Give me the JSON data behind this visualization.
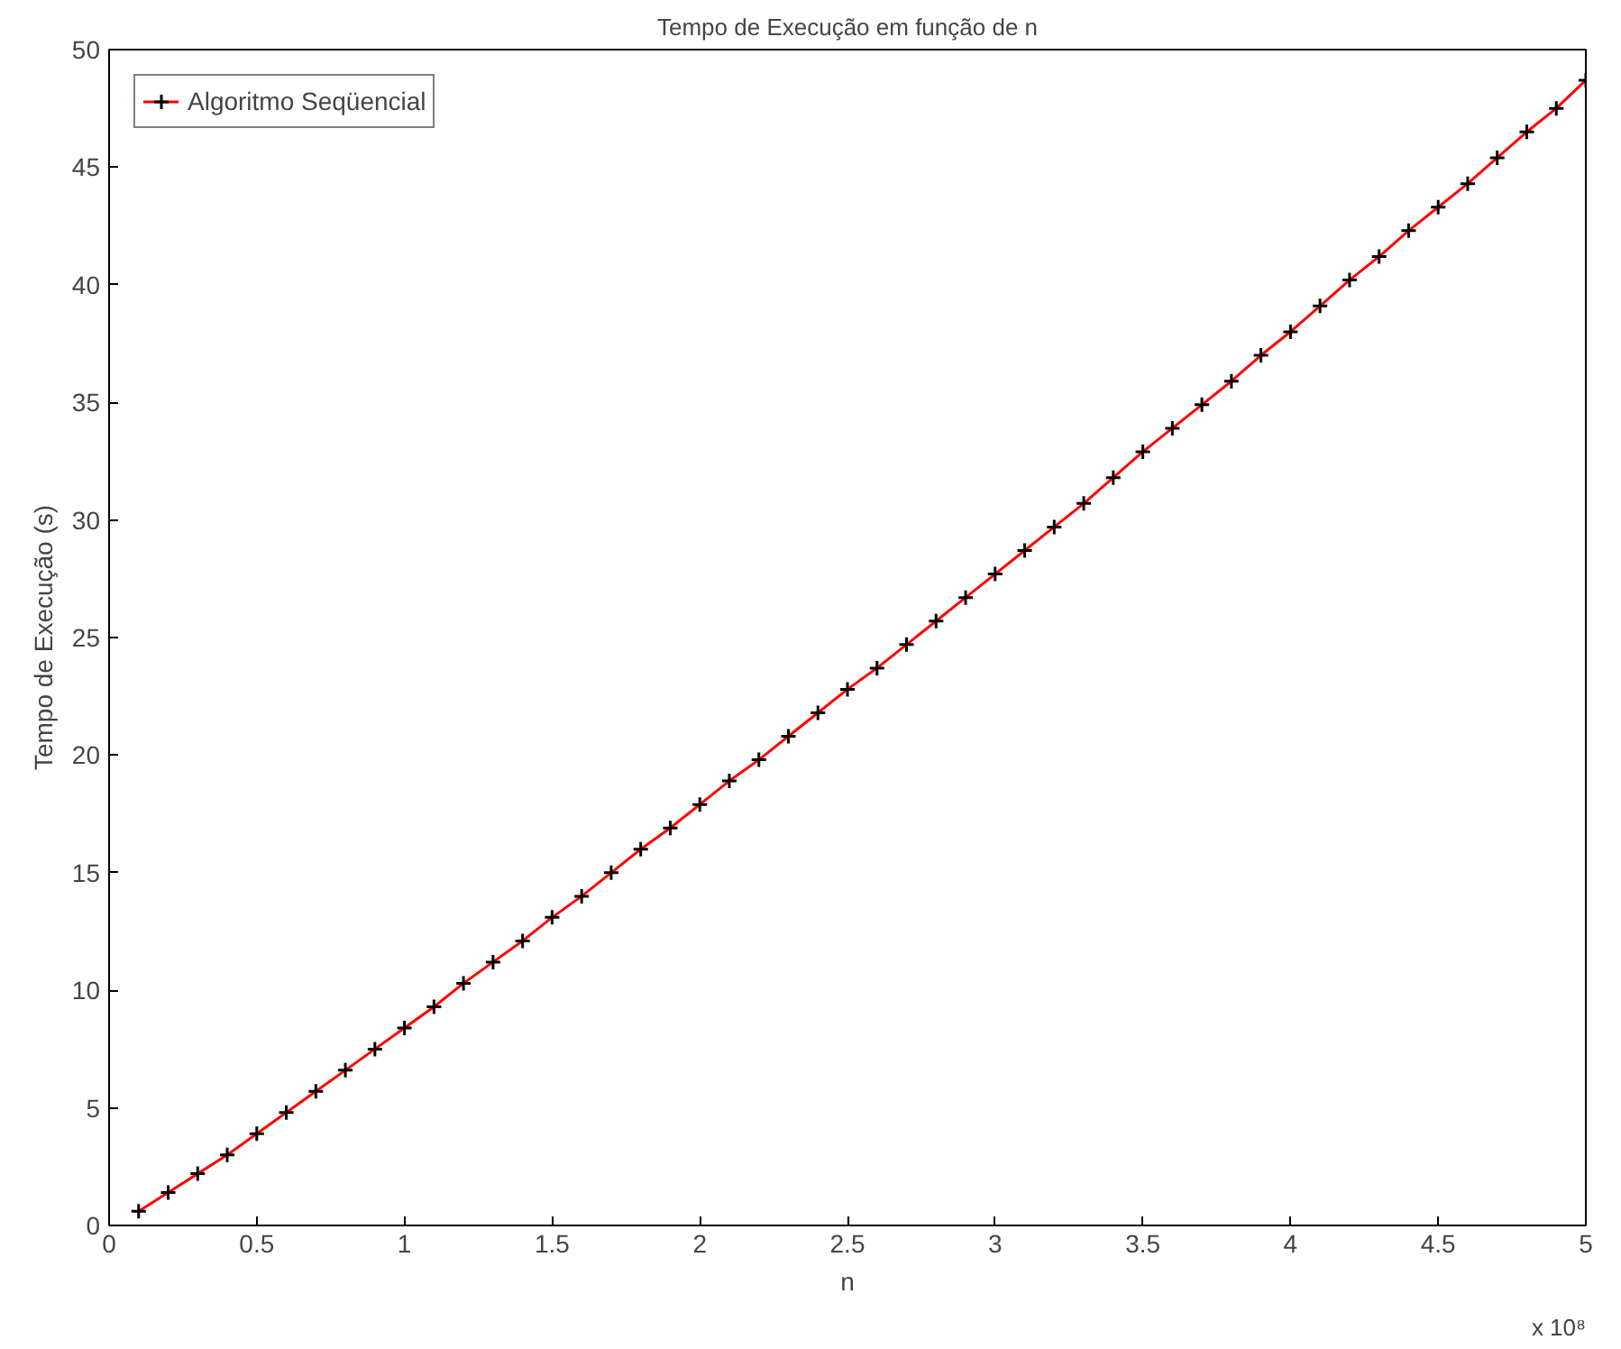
{
  "chart_data": {
    "type": "line",
    "title": "Tempo de Execução em função de n",
    "xlabel": "n",
    "ylabel": "Tempo de Execução (s)",
    "x": [
      0.1,
      0.2,
      0.3,
      0.4,
      0.5,
      0.6,
      0.7,
      0.8,
      0.9,
      1.0,
      1.1,
      1.2,
      1.3,
      1.4,
      1.5,
      1.6,
      1.7,
      1.8,
      1.9,
      2.0,
      2.1,
      2.2,
      2.3,
      2.4,
      2.5,
      2.6,
      2.7,
      2.8,
      2.9,
      3.0,
      3.1,
      3.2,
      3.3,
      3.4,
      3.5,
      3.6,
      3.7,
      3.8,
      3.9,
      4.0,
      4.1,
      4.2,
      4.3,
      4.4,
      4.5,
      4.6,
      4.7,
      4.8,
      4.9,
      5.0
    ],
    "series": [
      {
        "name": "Algoritmo Seqüencial",
        "color": "#ff0000",
        "values": [
          0.6,
          1.4,
          2.2,
          3.0,
          3.9,
          4.8,
          5.7,
          6.6,
          7.5,
          8.4,
          9.3,
          10.3,
          11.2,
          12.1,
          13.1,
          14.0,
          15.0,
          16.0,
          16.9,
          17.9,
          18.9,
          19.8,
          20.8,
          21.8,
          22.8,
          23.7,
          24.7,
          25.7,
          26.7,
          27.7,
          28.7,
          29.7,
          30.7,
          31.8,
          32.9,
          33.9,
          34.9,
          35.9,
          37.0,
          38.0,
          39.1,
          40.2,
          41.2,
          42.3,
          43.3,
          44.3,
          45.4,
          46.5,
          47.5,
          48.7
        ]
      }
    ],
    "xlim": [
      0,
      5
    ],
    "xticks": [
      0,
      0.5,
      1,
      1.5,
      2,
      2.5,
      3,
      3.5,
      4,
      4.5,
      5
    ],
    "ylim": [
      0,
      50
    ],
    "yticks": [
      0,
      5,
      10,
      15,
      20,
      25,
      30,
      35,
      40,
      45,
      50
    ],
    "annotations": [
      "x 10⁸"
    ],
    "legend": "top left",
    "grid": false,
    "marker": "cross",
    "line_style": "solid"
  }
}
